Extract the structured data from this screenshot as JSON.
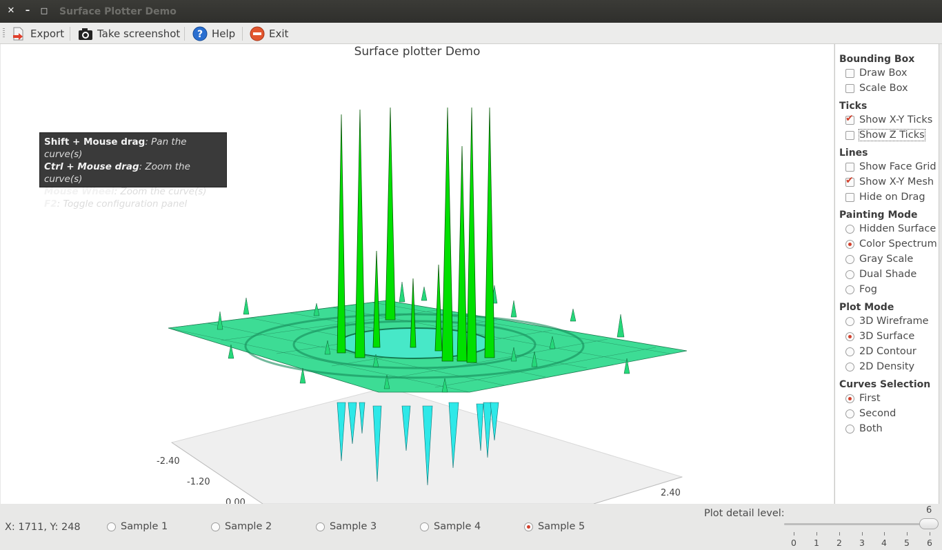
{
  "window": {
    "title": "Surface Plotter Demo",
    "close_glyph": "✕",
    "minimize_glyph": "–",
    "maximize_glyph": "□"
  },
  "toolbar": {
    "export_label": "Export",
    "screenshot_label": "Take screenshot",
    "help_label": "Help",
    "exit_label": "Exit"
  },
  "plot": {
    "title": "Surface plotter Demo",
    "help_lines": [
      {
        "key": "Shift + Mouse drag",
        "desc": ": Pan the curve(s)"
      },
      {
        "key": "Ctrl   + Mouse drag",
        "desc": ": Zoom the curve(s)"
      },
      {
        "key": "Mouse Wheel",
        "desc": ": Zoom the curve(s)"
      },
      {
        "key": "F2",
        "desc": ": Toggle configuration panel"
      }
    ],
    "axis_ticks": {
      "left_1": "-2.40",
      "left_2": "-1.20",
      "left_3": "0.00",
      "right_1": "2.40"
    },
    "colors": {
      "spike_green": "#00e000",
      "spike_cyan": "#2ee8e8",
      "mesh_teal": "#33d989",
      "floor": "#efefef"
    }
  },
  "side_panel": {
    "bounding_box": {
      "title": "Bounding Box",
      "draw_box": {
        "label": "Draw Box",
        "checked": false
      },
      "scale_box": {
        "label": "Scale Box",
        "checked": false
      }
    },
    "ticks": {
      "title": "Ticks",
      "show_xy": {
        "label": "Show X-Y Ticks",
        "checked": true
      },
      "show_z": {
        "label": "Show Z Ticks",
        "checked": false
      }
    },
    "lines": {
      "title": "Lines",
      "face_grid": {
        "label": "Show Face Grid",
        "checked": false
      },
      "xy_mesh": {
        "label": "Show X-Y Mesh",
        "checked": true
      },
      "hide_on_drag": {
        "label": "Hide on Drag",
        "checked": false
      }
    },
    "painting_mode": {
      "title": "Painting Mode",
      "hidden_surface": "Hidden Surface",
      "color_spectrum": "Color Spectrum",
      "gray_scale": "Gray Scale",
      "dual_shade": "Dual Shade",
      "fog": "Fog",
      "selected": "Color Spectrum"
    },
    "plot_mode": {
      "title": "Plot Mode",
      "wireframe": "3D Wireframe",
      "surface": "3D Surface",
      "contour": "2D Contour",
      "density": "2D Density",
      "selected": "3D Surface"
    },
    "curves_selection": {
      "title": "Curves Selection",
      "first": "First",
      "second": "Second",
      "both": "Both",
      "selected": "First"
    }
  },
  "bottom": {
    "coords": "X: 1711, Y: 248",
    "samples": [
      "Sample 1",
      "Sample 2",
      "Sample 3",
      "Sample 4",
      "Sample 5"
    ],
    "selected_sample": "Sample 5",
    "detail_label": "Plot detail level:",
    "detail_value": "6",
    "slider_ticks": [
      "0",
      "1",
      "2",
      "3",
      "4",
      "5",
      "6"
    ]
  }
}
